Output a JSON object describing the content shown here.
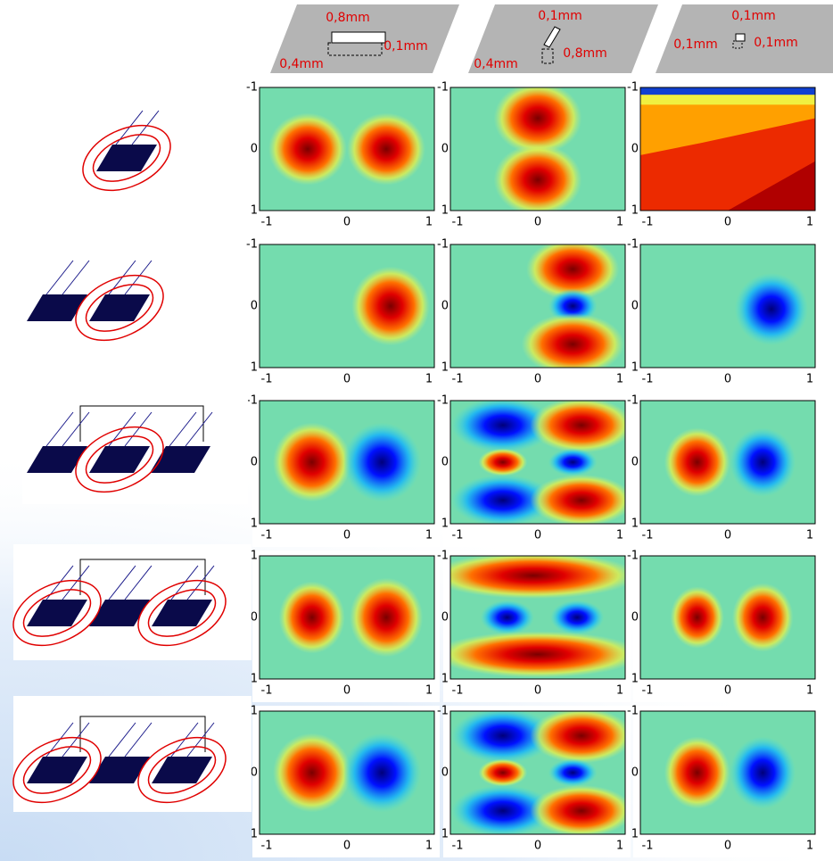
{
  "header": {
    "columns": [
      {
        "labels": [
          "0,8mm",
          "0,1mm",
          "0,4mm"
        ]
      },
      {
        "labels": [
          "0,1mm",
          "0,8mm",
          "0,4mm"
        ]
      },
      {
        "labels": [
          "0,1mm",
          "0,1mm",
          "0,1mm"
        ]
      }
    ]
  },
  "axes": {
    "xticks": [
      "-1",
      "0",
      "1"
    ],
    "yticks": [
      "-1",
      "0",
      "1"
    ]
  }
}
